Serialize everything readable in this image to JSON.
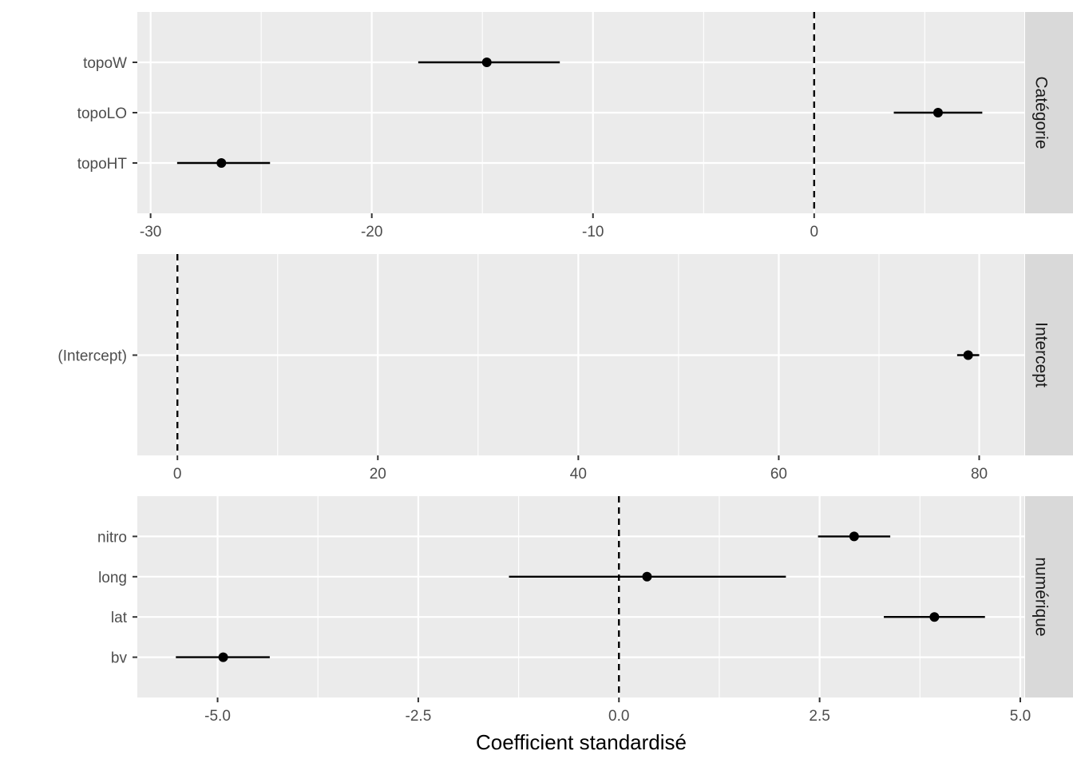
{
  "chart_data": {
    "type": "coefficient-plot",
    "xlabel": "Coefficient standardisé",
    "reference_line": 0,
    "panels": [
      {
        "strip": "Catégorie",
        "xlim": [
          -30.6,
          9.5
        ],
        "ticks": [
          -30,
          -20,
          -10,
          0
        ],
        "tick_labels": [
          "-30",
          "-20",
          "-10",
          "0"
        ],
        "terms": [
          {
            "term": "topoW",
            "estimate": -14.8,
            "low": -17.9,
            "high": -11.5
          },
          {
            "term": "topoLO",
            "estimate": 5.6,
            "low": 3.6,
            "high": 7.6
          },
          {
            "term": "topoHT",
            "estimate": -26.8,
            "low": -28.8,
            "high": -24.6
          }
        ]
      },
      {
        "strip": "Intercept",
        "xlim": [
          -4,
          84.5
        ],
        "ticks": [
          0,
          20,
          40,
          60,
          80
        ],
        "tick_labels": [
          "0",
          "20",
          "40",
          "60",
          "80"
        ],
        "terms": [
          {
            "term": "(Intercept)",
            "estimate": 78.9,
            "low": 77.8,
            "high": 80.0
          }
        ]
      },
      {
        "strip": "numérique",
        "xlim": [
          -6,
          5.05
        ],
        "ticks": [
          -5,
          -2.5,
          0,
          2.5,
          5
        ],
        "tick_labels": [
          "-5.0",
          "-2.5",
          "0.0",
          "2.5",
          "5.0"
        ],
        "terms": [
          {
            "term": "nitro",
            "estimate": 2.93,
            "low": 2.48,
            "high": 3.38
          },
          {
            "term": "long",
            "estimate": 0.35,
            "low": -1.37,
            "high": 2.08
          },
          {
            "term": "lat",
            "estimate": 3.93,
            "low": 3.3,
            "high": 4.56
          },
          {
            "term": "bv",
            "estimate": -4.93,
            "low": -5.52,
            "high": -4.35
          }
        ]
      }
    ]
  }
}
